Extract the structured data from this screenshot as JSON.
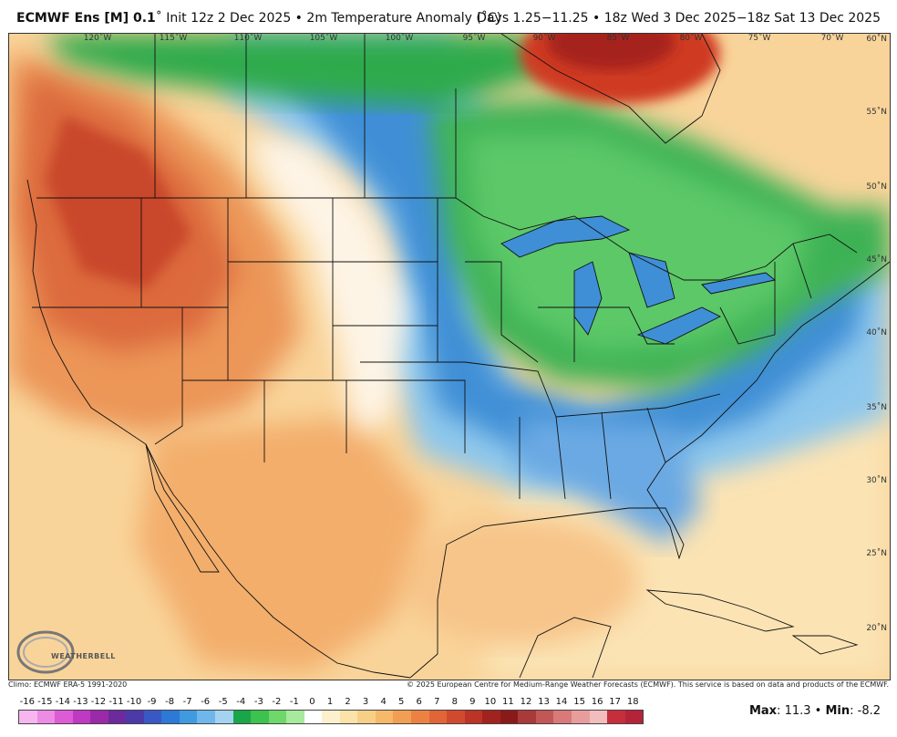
{
  "header": {
    "model": "ECMWF Ens [M] 0.1",
    "init": "Init 12z 2 Dec 2025",
    "product": "2m Temperature Anomaly (˚C)",
    "period": "Days 1.25−11.25 • 18z Wed 3 Dec 2025−18z Sat 13 Dec 2025"
  },
  "map": {
    "lon_labels": [
      "120˚W",
      "115˚W",
      "110˚W",
      "105˚W",
      "100˚W",
      "95˚W",
      "90˚W",
      "85˚W",
      "80˚W",
      "75˚W",
      "70˚W"
    ],
    "lat_labels": [
      "60˚N",
      "55˚N",
      "50˚N",
      "45˚N",
      "40˚N",
      "35˚N",
      "30˚N",
      "25˚N",
      "20˚N"
    ],
    "logo_text": "WEATHERBELL"
  },
  "credits": {
    "left": "Climo: ECMWF ERA-5 1991-2020",
    "right": "© 2025 European Centre for Medium-Range Weather Forecasts (ECMWF). This service is based on data and products of the ECMWF."
  },
  "colorbar": {
    "labels": [
      "-16",
      "-15",
      "-14",
      "-13",
      "-12",
      "-11",
      "-10",
      "-9",
      "-8",
      "-7",
      "-6",
      "-5",
      "-4",
      "-3",
      "-2",
      "-1",
      "0",
      "1",
      "2",
      "3",
      "4",
      "5",
      "6",
      "7",
      "8",
      "9",
      "10",
      "11",
      "12",
      "13",
      "14",
      "15",
      "16",
      "17",
      "18"
    ],
    "colors": [
      "#f7b6f0",
      "#ee8be4",
      "#dd5cd6",
      "#c039c2",
      "#9a2aa8",
      "#6c2a9c",
      "#4b3aa8",
      "#3a58c4",
      "#2d79d6",
      "#3f9ae0",
      "#6fb7ea",
      "#a4d3f2",
      "#19a64a",
      "#3cc24e",
      "#6fd86b",
      "#a7ea9d",
      "#ffffff",
      "#fdf0cc",
      "#fbe2a9",
      "#f8cf86",
      "#f5b969",
      "#f19f52",
      "#eb8242",
      "#e06537",
      "#d14a2e",
      "#bb3426",
      "#a1231f",
      "#8a1a1a",
      "#a83a3a",
      "#c25757",
      "#d97979",
      "#e89d9d",
      "#f1bdbd",
      "#c62e3b",
      "#b4233a"
    ]
  },
  "stats": {
    "max_label": "Max",
    "max_value": "11.3",
    "min_label": "Min",
    "min_value": "-8.2"
  }
}
